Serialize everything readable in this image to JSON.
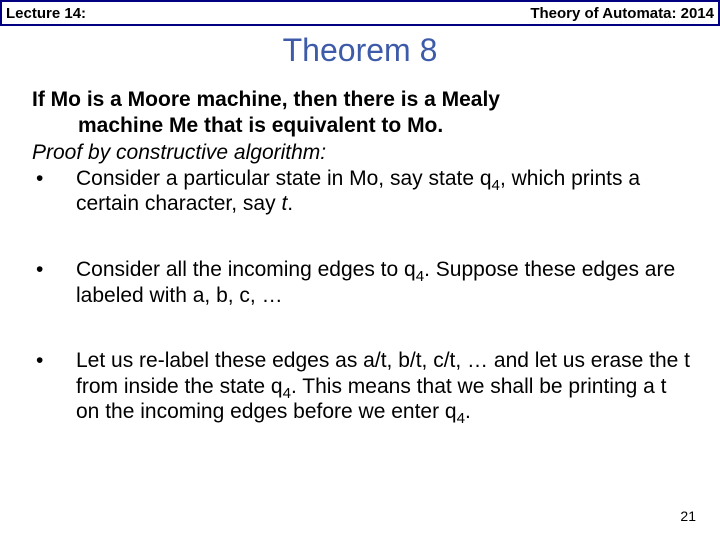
{
  "colors": {
    "header_border": "#000080",
    "title_color": "#3d5ba9",
    "text_color": "#000000",
    "background": "#ffffff"
  },
  "fonts": {
    "header_size_pt": 15,
    "title_size_pt": 32,
    "body_size_pt": 21,
    "pagenum_size_pt": 14
  },
  "header": {
    "left": "Lecture 14:",
    "right": "Theory of Automata: 2014"
  },
  "title": "Theorem 8",
  "statement": {
    "line1": "If Mo is a Moore machine, then there is a Mealy",
    "line2": "machine Me that is equivalent to Mo."
  },
  "proof_label": "Proof by constructive algorithm:",
  "bullets": [
    {
      "marker": "•",
      "text_html": "Consider a particular state in Mo, say state q<sub>4</sub>, which prints a certain character, say <i>t</i>."
    },
    {
      "marker": "•",
      "text_html": "Consider all the incoming edges to q<sub>4</sub>. Suppose these edges are labeled with a, b, c, …"
    },
    {
      "marker": "•",
      "text_html": "Let us re-label these edges as a/t, b/t, c/t, … and let us erase the t from inside the state q<sub>4</sub>. This means that we shall be printing a t on the incoming edges before we enter q<sub>4</sub>."
    }
  ],
  "page_number": "21"
}
